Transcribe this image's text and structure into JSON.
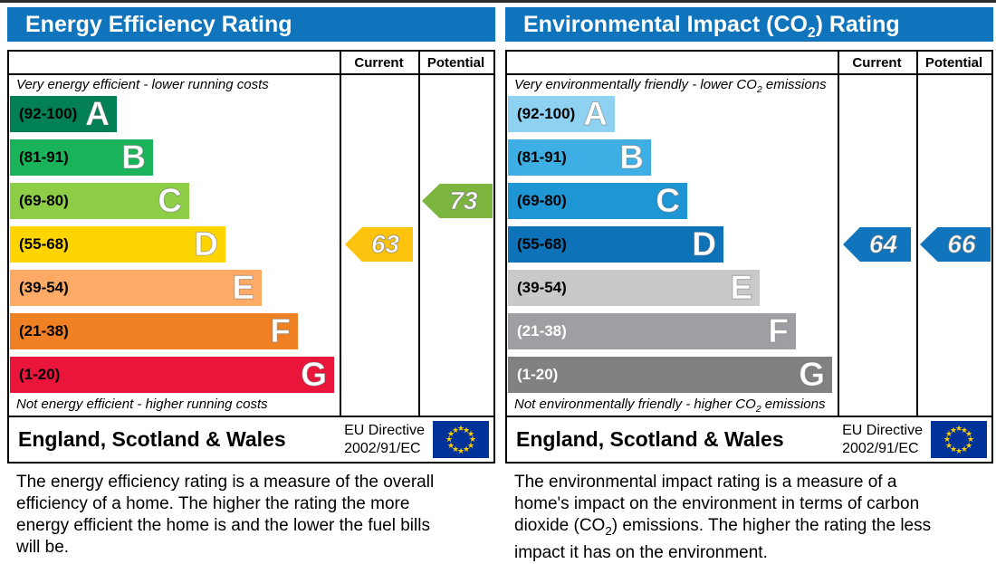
{
  "page": {
    "top_line_color": "#2b2b2b",
    "header_color": "#1074bc"
  },
  "eu_flag": {
    "background": "#003399",
    "star_color": "#ffcc00"
  },
  "chart_data": [
    {
      "type": "bar",
      "title_pre": "Energy Efficiency Rating",
      "title_sub": "",
      "title_post": "",
      "columns": {
        "current": "Current",
        "potential": "Potential"
      },
      "top_note_pre": "Very energy efficient - lower running costs",
      "top_note_sub": "",
      "top_note_post": "",
      "bottom_note_pre": "Not energy efficient - higher running costs",
      "bottom_note_sub": "",
      "bottom_note_post": "",
      "bands": [
        {
          "grade": "A",
          "range": "(92-100)",
          "min": 92,
          "max": 100,
          "color": "#008054",
          "range_color": "#000000"
        },
        {
          "grade": "B",
          "range": "(81-91)",
          "min": 81,
          "max": 91,
          "color": "#19b459",
          "range_color": "#000000"
        },
        {
          "grade": "C",
          "range": "(69-80)",
          "min": 69,
          "max": 80,
          "color": "#8dce46",
          "range_color": "#000000"
        },
        {
          "grade": "D",
          "range": "(55-68)",
          "min": 55,
          "max": 68,
          "color": "#ffd500",
          "range_color": "#000000"
        },
        {
          "grade": "E",
          "range": "(39-54)",
          "min": 39,
          "max": 54,
          "color": "#fcaa65",
          "range_color": "#000000"
        },
        {
          "grade": "F",
          "range": "(21-38)",
          "min": 21,
          "max": 38,
          "color": "#ef8023",
          "range_color": "#000000"
        },
        {
          "grade": "G",
          "range": "(1-20)",
          "min": 1,
          "max": 20,
          "color": "#e9153b",
          "range_color": "#000000"
        }
      ],
      "current": {
        "value": "63",
        "band": "D",
        "color": "#fcc40e"
      },
      "potential": {
        "value": "73",
        "band": "C",
        "color": "#7db63e"
      },
      "footer": {
        "region": "England, Scotland & Wales",
        "directive_line1": "EU Directive",
        "directive_line2": "2002/91/EC"
      },
      "description_pre": "The energy efficiency rating is a measure of the overall efficiency of a home. The higher the rating the more energy efficient the home is and the lower the fuel bills will be.",
      "description_sub": "",
      "description_post": ""
    },
    {
      "type": "bar",
      "title_pre": "Environmental Impact (CO",
      "title_sub": "2",
      "title_post": ") Rating",
      "columns": {
        "current": "Current",
        "potential": "Potential"
      },
      "top_note_pre": "Very environmentally friendly - lower CO",
      "top_note_sub": "2",
      "top_note_post": " emissions",
      "bottom_note_pre": "Not environmentally friendly - higher CO",
      "bottom_note_sub": "2",
      "bottom_note_post": " emissions",
      "bands": [
        {
          "grade": "A",
          "range": "(92-100)",
          "min": 92,
          "max": 100,
          "color": "#8ed1f0",
          "range_color": "#000000"
        },
        {
          "grade": "B",
          "range": "(81-91)",
          "min": 81,
          "max": 91,
          "color": "#3dafe4",
          "range_color": "#000000"
        },
        {
          "grade": "C",
          "range": "(69-80)",
          "min": 69,
          "max": 80,
          "color": "#1e96d4",
          "range_color": "#000000"
        },
        {
          "grade": "D",
          "range": "(55-68)",
          "min": 55,
          "max": 68,
          "color": "#0d72b8",
          "range_color": "#000000"
        },
        {
          "grade": "E",
          "range": "(39-54)",
          "min": 39,
          "max": 54,
          "color": "#c8c9cb",
          "range_color": "#000000"
        },
        {
          "grade": "F",
          "range": "(21-38)",
          "min": 21,
          "max": 38,
          "color": "#9d9fa2",
          "range_color": "#ffffff"
        },
        {
          "grade": "G",
          "range": "(1-20)",
          "min": 1,
          "max": 20,
          "color": "#7f8183",
          "range_color": "#ffffff"
        }
      ],
      "current": {
        "value": "64",
        "band": "D",
        "color": "#1075bc"
      },
      "potential": {
        "value": "66",
        "band": "D",
        "color": "#1075bc"
      },
      "footer": {
        "region": "England, Scotland & Wales",
        "directive_line1": "EU Directive",
        "directive_line2": "2002/91/EC"
      },
      "description_pre": "The environmental impact rating is a measure of a home's impact on the environment in terms of carbon dioxide (CO",
      "description_sub": "2",
      "description_post": ") emissions. The higher the rating the less impact it has on the environment."
    }
  ]
}
